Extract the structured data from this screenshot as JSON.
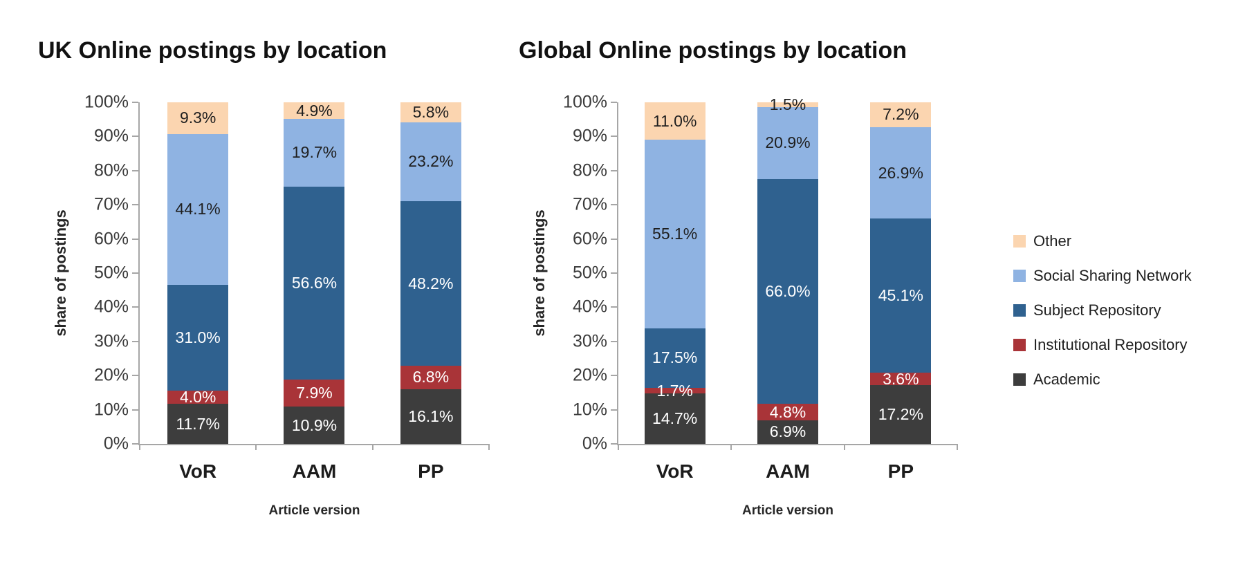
{
  "chart_data": [
    {
      "type": "bar",
      "stacked": true,
      "units": "percent",
      "title": "UK Online postings by location",
      "xlabel": "Article version",
      "ylabel": "share of postings",
      "categories": [
        "VoR",
        "AAM",
        "PP"
      ],
      "ylim": [
        0,
        100
      ],
      "grid": false,
      "y_tick_labels": [
        "100%",
        "90%",
        "80%",
        "70%",
        "60%",
        "50%",
        "40%",
        "30%",
        "20%",
        "10%",
        "0%"
      ],
      "series": [
        {
          "name": "Academic",
          "color": "#3d3d3d",
          "label_color": "#ffffff",
          "values": [
            11.7,
            10.9,
            16.1
          ]
        },
        {
          "name": "Institutional Repository",
          "color": "#a93438",
          "label_color": "#ffffff",
          "values": [
            4.0,
            7.9,
            6.8
          ]
        },
        {
          "name": "Subject Repository",
          "color": "#2f618f",
          "label_color": "#ffffff",
          "values": [
            31.0,
            56.6,
            48.2
          ]
        },
        {
          "name": "Social Sharing Network",
          "color": "#8fb3e2",
          "label_color": "#1f1f1f",
          "values": [
            44.1,
            19.7,
            23.2
          ]
        },
        {
          "name": "Other",
          "color": "#fbd5b0",
          "label_color": "#1f1f1f",
          "values": [
            9.3,
            4.9,
            5.8
          ]
        }
      ]
    },
    {
      "type": "bar",
      "stacked": true,
      "units": "percent",
      "title": "Global Online postings by location",
      "xlabel": "Article version",
      "ylabel": "share of postings",
      "categories": [
        "VoR",
        "AAM",
        "PP"
      ],
      "ylim": [
        0,
        100
      ],
      "grid": false,
      "y_tick_labels": [
        "100%",
        "90%",
        "80%",
        "70%",
        "60%",
        "50%",
        "40%",
        "30%",
        "20%",
        "10%",
        "0%"
      ],
      "series": [
        {
          "name": "Academic",
          "color": "#3d3d3d",
          "label_color": "#ffffff",
          "values": [
            14.7,
            6.9,
            17.2
          ]
        },
        {
          "name": "Institutional Repository",
          "color": "#a93438",
          "label_color": "#ffffff",
          "values": [
            1.7,
            4.8,
            3.6
          ]
        },
        {
          "name": "Subject Repository",
          "color": "#2f618f",
          "label_color": "#ffffff",
          "values": [
            17.5,
            66.0,
            45.1
          ]
        },
        {
          "name": "Social Sharing Network",
          "color": "#8fb3e2",
          "label_color": "#1f1f1f",
          "values": [
            55.1,
            20.9,
            26.9
          ]
        },
        {
          "name": "Other",
          "color": "#fbd5b0",
          "label_color": "#1f1f1f",
          "values": [
            11.0,
            1.5,
            7.2
          ]
        }
      ]
    }
  ],
  "legend": {
    "position": "right",
    "items": [
      {
        "label": "Other",
        "color": "#fbd5b0"
      },
      {
        "label": "Social Sharing Network",
        "color": "#8fb3e2"
      },
      {
        "label": "Subject Repository",
        "color": "#2f618f"
      },
      {
        "label": "Institutional Repository",
        "color": "#a93438"
      },
      {
        "label": "Academic",
        "color": "#3d3d3d"
      }
    ]
  }
}
